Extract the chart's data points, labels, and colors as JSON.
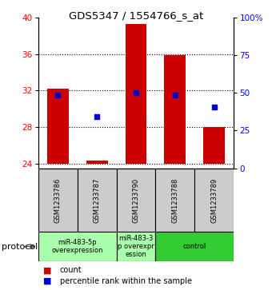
{
  "title": "GDS5347 / 1554766_s_at",
  "samples": [
    "GSM1233786",
    "GSM1233787",
    "GSM1233790",
    "GSM1233788",
    "GSM1233789"
  ],
  "bar_bottoms": [
    24,
    24,
    24,
    24,
    24
  ],
  "bar_tops": [
    32.2,
    24.3,
    39.3,
    35.9,
    28.0
  ],
  "blue_dots": [
    31.5,
    29.1,
    31.8,
    31.5,
    30.2
  ],
  "ylim_left": [
    23.5,
    40
  ],
  "ylim_right": [
    0,
    100
  ],
  "yticks_left": [
    24,
    28,
    32,
    36,
    40
  ],
  "yticks_right": [
    0,
    25,
    50,
    75,
    100
  ],
  "ytick_labels_right": [
    "0",
    "25",
    "50",
    "75",
    "100%"
  ],
  "bar_color": "#cc0000",
  "dot_color": "#0000cc",
  "protocol_label": "protocol",
  "legend_count_label": "count",
  "legend_pct_label": "percentile rank within the sample",
  "sample_box_color": "#cccccc",
  "group_light_green": "#aaffaa",
  "group_dark_green": "#33cc33",
  "bar_width": 0.55
}
